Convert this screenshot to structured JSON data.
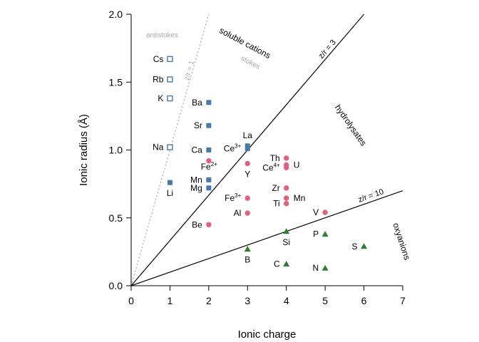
{
  "chart_data": {
    "type": "scatter",
    "xlabel": "Ionic charge",
    "ylabel": "Ionic radius (Å)",
    "xlim": [
      0,
      7
    ],
    "ylim": [
      0,
      2
    ],
    "xticks": [
      "0",
      "1",
      "2",
      "3",
      "4",
      "5",
      "6",
      "7"
    ],
    "yticks": [
      "0.0",
      "0.5",
      "1.0",
      "1.5",
      "2.0"
    ],
    "grid": false,
    "colors": {
      "soluble": "#4a79a6",
      "hydrolysates": "#e0607e",
      "oxyanions": "#2e7d32",
      "zr1": "#a6a6a6",
      "lines": "#000000"
    },
    "lines": [
      {
        "label": "z/r = 1",
        "slope": 1,
        "style": "dotted",
        "color": "#a6a6a6"
      },
      {
        "label": "z/r = 3",
        "slope": 0.3333,
        "style": "solid",
        "color": "#000000"
      },
      {
        "label": "z/r = 10",
        "slope": 0.1,
        "style": "solid",
        "color": "#000000"
      }
    ],
    "region_labels": [
      {
        "text": "soluble cations",
        "x": 2.9,
        "y": 1.77,
        "angle": 28,
        "kind": "region"
      },
      {
        "text": "stokes",
        "x": 3.05,
        "y": 1.63,
        "angle": 28,
        "kind": "gray"
      },
      {
        "text": "antistokes",
        "x": 0.8,
        "y": 1.83,
        "angle": 0,
        "kind": "gray"
      },
      {
        "text": "hydrolysates",
        "x": 5.6,
        "y": 1.17,
        "angle": 55,
        "kind": "region"
      },
      {
        "text": "oxyanions",
        "x": 6.9,
        "y": 0.32,
        "angle": 72,
        "kind": "region"
      }
    ],
    "series": [
      {
        "name": "soluble cations (antistokes)",
        "marker": "open-square",
        "color": "#4a79a6",
        "points": [
          {
            "label": "Cs",
            "x": 1,
            "y": 1.67,
            "label_pos": "left"
          },
          {
            "label": "Rb",
            "x": 1,
            "y": 1.52,
            "label_pos": "left"
          },
          {
            "label": "K",
            "x": 1,
            "y": 1.38,
            "label_pos": "left"
          },
          {
            "label": "Na",
            "x": 1,
            "y": 1.02,
            "label_pos": "left"
          }
        ]
      },
      {
        "name": "soluble cations (stokes)",
        "marker": "filled-square",
        "color": "#4a79a6",
        "points": [
          {
            "label": "Li",
            "x": 1,
            "y": 0.76,
            "label_pos": "below"
          },
          {
            "label": "Ba",
            "x": 2,
            "y": 1.35,
            "label_pos": "left"
          },
          {
            "label": "Sr",
            "x": 2,
            "y": 1.18,
            "label_pos": "left"
          },
          {
            "label": "Ca",
            "x": 2,
            "y": 1.0,
            "label_pos": "left"
          },
          {
            "label": "Mn",
            "x": 2,
            "y": 0.78,
            "label_pos": "left"
          },
          {
            "label": "Mg",
            "x": 2,
            "y": 0.72,
            "label_pos": "left"
          },
          {
            "label": "La",
            "x": 3,
            "y": 1.03,
            "label_pos": "above"
          },
          {
            "label": "Ce",
            "x": 3,
            "y": 1.01,
            "label_pos": "left",
            "sup": "3+"
          }
        ]
      },
      {
        "name": "hydrolysates",
        "marker": "filled-circle",
        "color": "#e0607e",
        "points": [
          {
            "label": "Fe",
            "x": 2,
            "y": 0.92,
            "label_pos": "none",
            "sup": "2+"
          },
          {
            "label": "Be",
            "x": 2,
            "y": 0.45,
            "label_pos": "left"
          },
          {
            "label": "Y",
            "x": 3,
            "y": 0.9,
            "label_pos": "below"
          },
          {
            "label": "Fe",
            "x": 3,
            "y": 0.645,
            "label_pos": "left",
            "sup": "3+"
          },
          {
            "label": "Al",
            "x": 3,
            "y": 0.535,
            "label_pos": "left"
          },
          {
            "label": "Th",
            "x": 4,
            "y": 0.94,
            "label_pos": "left"
          },
          {
            "label": "U",
            "x": 4,
            "y": 0.89,
            "label_pos": "right"
          },
          {
            "label": "Ce",
            "x": 4,
            "y": 0.87,
            "label_pos": "left",
            "sup": "4+"
          },
          {
            "label": "Zr",
            "x": 4,
            "y": 0.72,
            "label_pos": "left"
          },
          {
            "label": "Mn",
            "x": 4,
            "y": 0.645,
            "label_pos": "right"
          },
          {
            "label": "Ti",
            "x": 4,
            "y": 0.605,
            "label_pos": "left"
          },
          {
            "label": "V",
            "x": 5,
            "y": 0.54,
            "label_pos": "left"
          }
        ]
      },
      {
        "name": "oxyanions",
        "marker": "filled-triangle",
        "color": "#2e7d32",
        "points": [
          {
            "label": "Si",
            "x": 4,
            "y": 0.4,
            "label_pos": "below"
          },
          {
            "label": "B",
            "x": 3,
            "y": 0.27,
            "label_pos": "below"
          },
          {
            "label": "C",
            "x": 4,
            "y": 0.16,
            "label_pos": "left"
          },
          {
            "label": "P",
            "x": 5,
            "y": 0.38,
            "label_pos": "left"
          },
          {
            "label": "N",
            "x": 5,
            "y": 0.13,
            "label_pos": "left"
          },
          {
            "label": "S",
            "x": 6,
            "y": 0.29,
            "label_pos": "left"
          }
        ]
      }
    ],
    "extra_labels": [
      {
        "text": "Fe",
        "sup": "2+",
        "x": 2,
        "y": 0.85,
        "anchor": "end"
      }
    ]
  }
}
